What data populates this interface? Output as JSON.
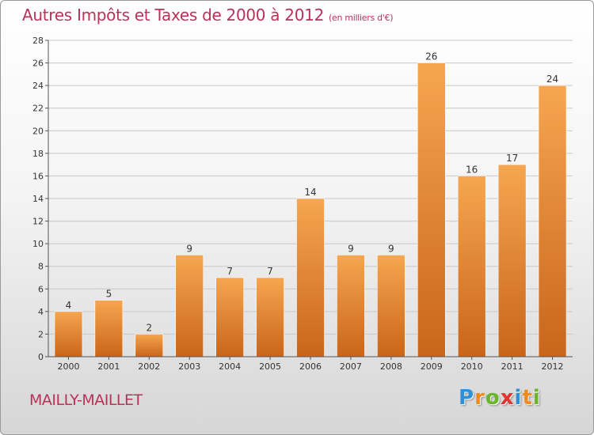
{
  "header": {
    "title": "Autres Impôts et Taxes de 2000 à 2012",
    "unit": "(en milliers d'€)"
  },
  "footer": {
    "commune": "MAILLY-MAILLET",
    "logo_text": "Proxiti",
    "logo_colors": [
      "#2f8fd8",
      "#f08a1d",
      "#6bb52a",
      "#e4342f",
      "#2f8fd8",
      "#f08a1d",
      "#6bb52a"
    ]
  },
  "colors": {
    "title": "#b8325a",
    "bar_light": "#f6a650",
    "bar_dark": "#c9651a",
    "grid": "#c8c8c8",
    "axis": "#555555"
  },
  "chart_data": {
    "type": "bar",
    "title": "Autres Impôts et Taxes de 2000 à 2012",
    "xlabel": "",
    "ylabel": "",
    "categories": [
      "2000",
      "2001",
      "2002",
      "2003",
      "2004",
      "2005",
      "2006",
      "2007",
      "2008",
      "2009",
      "2010",
      "2011",
      "2012"
    ],
    "values": [
      4,
      5,
      2,
      9,
      7,
      7,
      14,
      9,
      9,
      26,
      16,
      17,
      24
    ],
    "ylim": [
      0,
      28
    ],
    "yticks": [
      0,
      2,
      4,
      6,
      8,
      10,
      12,
      14,
      16,
      18,
      20,
      22,
      24,
      26,
      28
    ],
    "grid": true,
    "legend": "none"
  }
}
